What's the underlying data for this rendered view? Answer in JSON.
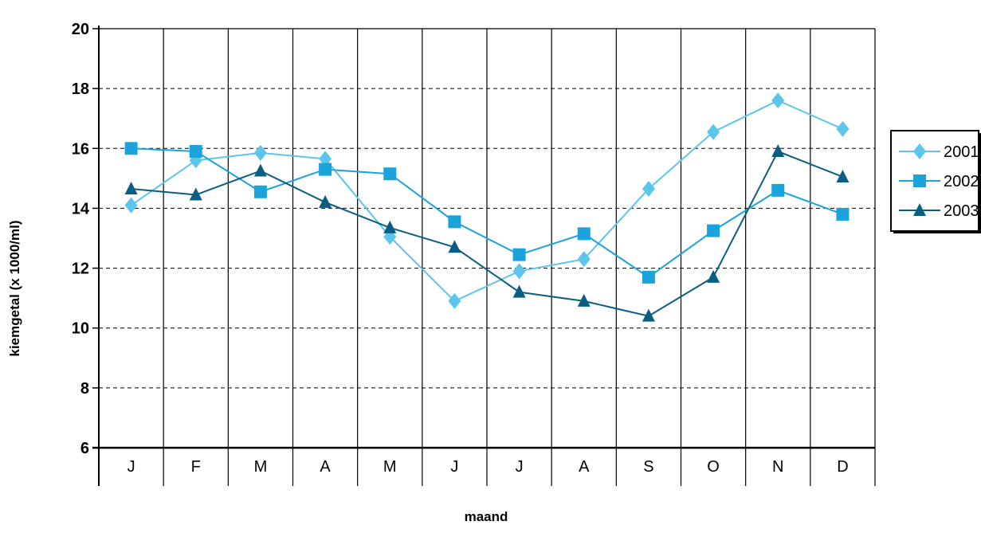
{
  "chart_data": {
    "type": "line",
    "title": "",
    "xlabel": "maand",
    "ylabel": "kiemgetal (x 1000/ml)",
    "categories": [
      "J",
      "F",
      "M",
      "A",
      "M",
      "J",
      "J",
      "A",
      "S",
      "O",
      "N",
      "D"
    ],
    "yticks": [
      "6",
      "8",
      "10",
      "12",
      "14",
      "16",
      "18",
      "20"
    ],
    "ylim": [
      6,
      20
    ],
    "grid": true,
    "legend_position": "right",
    "series": [
      {
        "name": "2001",
        "color": "#5cc5ec",
        "marker": "diamond",
        "values": [
          14.1,
          15.6,
          15.85,
          15.65,
          13.05,
          10.9,
          11.9,
          12.3,
          14.65,
          16.55,
          17.6,
          16.65
        ]
      },
      {
        "name": "2002",
        "color": "#1ba3db",
        "marker": "square",
        "values": [
          16.0,
          15.9,
          14.55,
          15.3,
          15.15,
          13.55,
          12.45,
          13.15,
          11.7,
          13.25,
          14.6,
          13.8
        ]
      },
      {
        "name": "2003",
        "color": "#0a5e82",
        "marker": "triangle",
        "values": [
          14.65,
          14.45,
          15.25,
          14.2,
          13.35,
          12.7,
          11.2,
          10.9,
          10.4,
          11.7,
          15.9,
          15.05
        ]
      }
    ]
  }
}
